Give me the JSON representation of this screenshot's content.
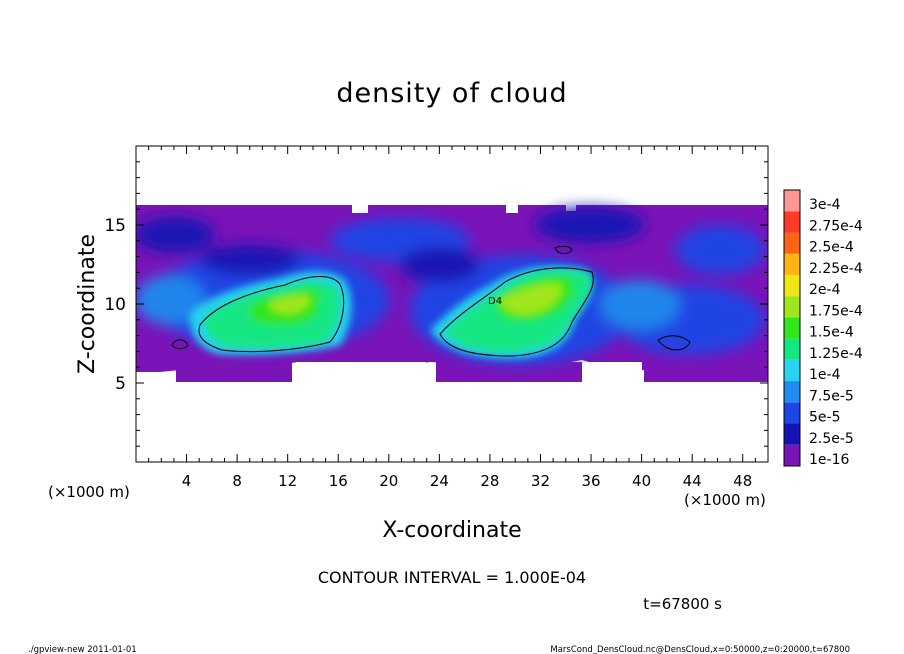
{
  "chart_data": {
    "type": "heatmap",
    "title": "density of cloud",
    "xlabel": "X-coordinate",
    "ylabel": "Z-coordinate",
    "x_unit": "(×1000 m)",
    "y_unit": "(×1000 m)",
    "x_range": [
      0,
      50
    ],
    "y_range": [
      0,
      20
    ],
    "x_ticks": [
      4,
      8,
      12,
      16,
      20,
      24,
      28,
      32,
      36,
      40,
      44,
      48
    ],
    "y_ticks": [
      5,
      10,
      15
    ],
    "contour_interval_text": "CONTOUR INTERVAL = 1.000E-04",
    "contour_label": "D4",
    "time_text": "t=67800 s",
    "colorbar": {
      "labels": [
        "1e-16",
        "2.5e-5",
        "5e-5",
        "7.5e-5",
        "1e-4",
        "1.25e-4",
        "1.5e-4",
        "1.75e-4",
        "2e-4",
        "2.25e-4",
        "2.5e-4",
        "2.75e-4",
        "3e-4"
      ],
      "colors": [
        "#7a14b8",
        "#1414b4",
        "#1e46e6",
        "#1e8cf0",
        "#28d2f0",
        "#14e682",
        "#32e61e",
        "#a0e61e",
        "#f0e614",
        "#ffb414",
        "#ff6414",
        "#ff3c28",
        "#ff9696"
      ]
    },
    "field_summary": {
      "cloud_layer_z_range": [
        5.5,
        16.3
      ],
      "peak_region_x": [
        28,
        35
      ],
      "peak_region_z": [
        9.5,
        12.5
      ],
      "peak_value_approx": 0.0002
    },
    "footer_left": "./gpview-new   2011-01-01",
    "footer_right": "MarsCond_DensCloud.nc@DensCloud,x=0:50000,z=0:20000,t=67800"
  }
}
